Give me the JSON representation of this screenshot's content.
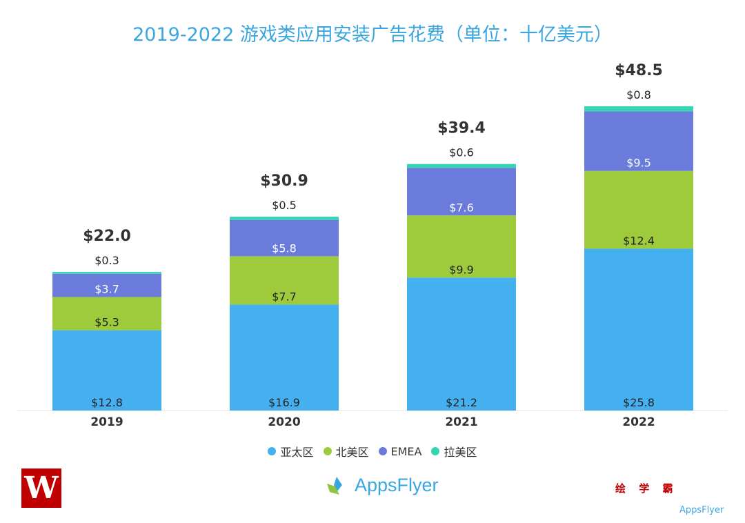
{
  "title": "2019-2022 游戏类应用安装广告花费（单位：十亿美元）",
  "chart_data": {
    "type": "bar",
    "stacked": true,
    "title": "2019-2022 游戏类应用安装广告花费（单位：十亿美元）",
    "categories": [
      "2019",
      "2020",
      "2021",
      "2022"
    ],
    "series": [
      {
        "name": "亚太区",
        "color": "#45b0ef",
        "values": [
          12.8,
          16.9,
          21.2,
          25.8
        ],
        "labels": [
          "$12.8",
          "$16.9",
          "$21.2",
          "$25.8"
        ],
        "label_color": "#222222"
      },
      {
        "name": "北美区",
        "color": "#9dcb3c",
        "values": [
          5.3,
          7.7,
          9.9,
          12.4
        ],
        "labels": [
          "$5.3",
          "$7.7",
          "$9.9",
          "$12.4"
        ],
        "label_color": "#222222"
      },
      {
        "name": "EMEA",
        "color": "#6a7bdc",
        "values": [
          3.7,
          5.8,
          7.6,
          9.5
        ],
        "labels": [
          "$3.7",
          "$5.8",
          "$7.6",
          "$9.5"
        ],
        "label_color": "#ffffff"
      },
      {
        "name": "拉美区",
        "color": "#33d6b0",
        "values": [
          0.3,
          0.5,
          0.6,
          0.8
        ],
        "labels": [
          "$0.3",
          "$0.5",
          "$0.6",
          "$0.8"
        ],
        "label_color": "#222222"
      }
    ],
    "totals": [
      22.0,
      30.9,
      39.4,
      48.5
    ],
    "total_labels": [
      "$22.0",
      "$30.9",
      "$39.4",
      "$48.5"
    ],
    "xlabel": "",
    "ylabel": "",
    "ylim": [
      0,
      50
    ],
    "grid": false,
    "legend": "bottom-center"
  },
  "logos": {
    "left": "W",
    "center": "AppsFlyer",
    "right_text": "绘 学 霸",
    "right_small": "AppsFlyer"
  }
}
